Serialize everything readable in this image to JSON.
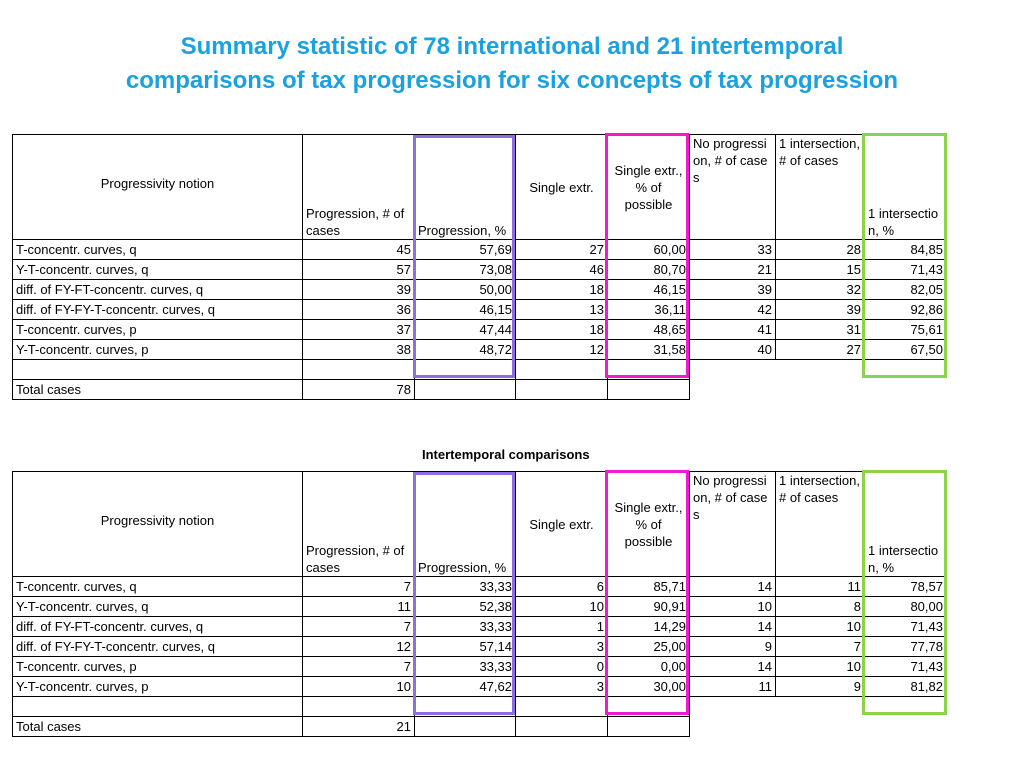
{
  "title": {
    "line1": "Summary statistic of  78 international and 21 intertemporal",
    "line2": "comparisons of tax progression for six concepts of tax progression"
  },
  "headers": {
    "notion": "Progressivity notion",
    "prog_cases": "Progression, # of cases",
    "prog_pct": "Progression, %",
    "single_extr": "Single extr.",
    "single_extr_pct": "Single extr., % of possible",
    "no_progression": "No progression, # of cases",
    "one_int_cases": "1 intersection, # of cases",
    "one_int_pct": "1 intersection, %"
  },
  "international": {
    "rows": [
      {
        "notion": "T-concentr. curves, q",
        "prog_cases": "45",
        "prog_pct": "57,69",
        "single_extr": "27",
        "single_extr_pct": "60,00",
        "no_prog": "33",
        "int_cases": "28",
        "int_pct": "84,85"
      },
      {
        "notion": "Y-T-concentr. curves, q",
        "prog_cases": "57",
        "prog_pct": "73,08",
        "single_extr": "46",
        "single_extr_pct": "80,70",
        "no_prog": "21",
        "int_cases": "15",
        "int_pct": "71,43"
      },
      {
        "notion": "diff. of FY-FT-concentr. curves, q",
        "prog_cases": "39",
        "prog_pct": "50,00",
        "single_extr": "18",
        "single_extr_pct": "46,15",
        "no_prog": "39",
        "int_cases": "32",
        "int_pct": "82,05"
      },
      {
        "notion": "diff. of FY-FY-T-concentr. curves, q",
        "prog_cases": "36",
        "prog_pct": "46,15",
        "single_extr": "13",
        "single_extr_pct": "36,11",
        "no_prog": "42",
        "int_cases": "39",
        "int_pct": "92,86"
      },
      {
        "notion": "T-concentr. curves, p",
        "prog_cases": "37",
        "prog_pct": "47,44",
        "single_extr": "18",
        "single_extr_pct": "48,65",
        "no_prog": "41",
        "int_cases": "31",
        "int_pct": "75,61"
      },
      {
        "notion": "Y-T-concentr. curves, p",
        "prog_cases": "38",
        "prog_pct": "48,72",
        "single_extr": "12",
        "single_extr_pct": "31,58",
        "no_prog": "40",
        "int_cases": "27",
        "int_pct": "67,50"
      }
    ],
    "total_label": "Total cases",
    "total_value": "78"
  },
  "intertemporal": {
    "caption": "Intertemporal comparisons",
    "rows": [
      {
        "notion": "T-concentr. curves, q",
        "prog_cases": "7",
        "prog_pct": "33,33",
        "single_extr": "6",
        "single_extr_pct": "85,71",
        "no_prog": "14",
        "int_cases": "11",
        "int_pct": "78,57"
      },
      {
        "notion": "Y-T-concentr. curves, q",
        "prog_cases": "11",
        "prog_pct": "52,38",
        "single_extr": "10",
        "single_extr_pct": "90,91",
        "no_prog": "10",
        "int_cases": "8",
        "int_pct": "80,00"
      },
      {
        "notion": "diff. of FY-FT-concentr. curves, q",
        "prog_cases": "7",
        "prog_pct": "33,33",
        "single_extr": "1",
        "single_extr_pct": "14,29",
        "no_prog": "14",
        "int_cases": "10",
        "int_pct": "71,43"
      },
      {
        "notion": "diff. of FY-FY-T-concentr. curves, q",
        "prog_cases": "12",
        "prog_pct": "57,14",
        "single_extr": "3",
        "single_extr_pct": "25,00",
        "no_prog": "9",
        "int_cases": "7",
        "int_pct": "77,78"
      },
      {
        "notion": "T-concentr. curves, p",
        "prog_cases": "7",
        "prog_pct": "33,33",
        "single_extr": "0",
        "single_extr_pct": "0,00",
        "no_prog": "14",
        "int_cases": "10",
        "int_pct": "71,43"
      },
      {
        "notion": "Y-T-concentr. curves, p",
        "prog_cases": "10",
        "prog_pct": "47,62",
        "single_extr": "3",
        "single_extr_pct": "30,00",
        "no_prog": "11",
        "int_cases": "9",
        "int_pct": "81,82"
      }
    ],
    "total_label": "Total cases",
    "total_value": "21"
  },
  "colors": {
    "title": "#1aa1df",
    "highlight_progression_pct": "#8e6ee0",
    "highlight_single_extr_pct": "#ee1bd3",
    "highlight_intersection_pct": "#8cd24c"
  }
}
